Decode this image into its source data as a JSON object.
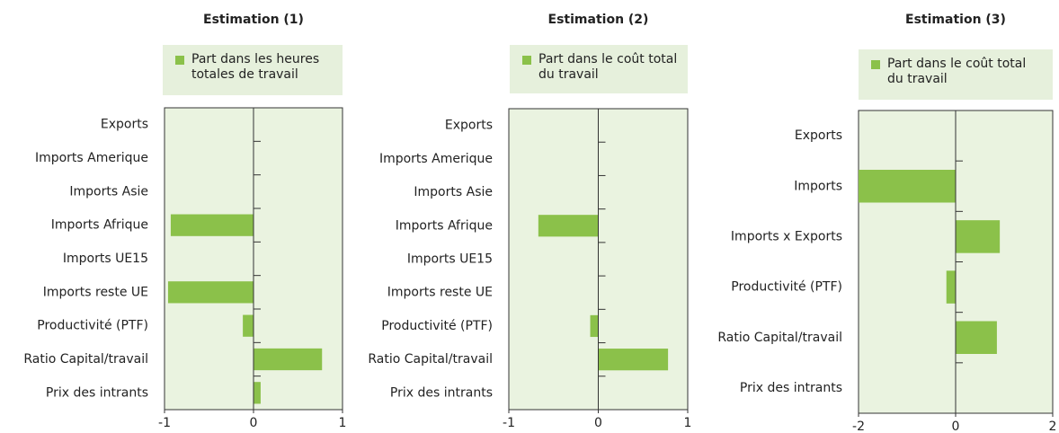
{
  "chart_data": [
    {
      "type": "bar",
      "title": "Estimation (1)",
      "categories": [
        "Exports",
        "Imports Amerique",
        "Imports Asie",
        "Imports Afrique",
        "Imports UE15",
        "Imports reste UE",
        "Productivité (PTF)",
        "Ratio Capital/travail",
        "Prix des intrants"
      ],
      "series": [
        {
          "name": "Part dans les heures totales de travail",
          "color": "#8bc14a",
          "values": [
            0,
            0,
            0,
            -0.93,
            0,
            -0.96,
            -0.12,
            0.77,
            0.08
          ]
        }
      ],
      "xlim": [
        -1,
        1
      ],
      "xticks": [
        -1,
        0,
        1
      ]
    },
    {
      "type": "bar",
      "title": "Estimation (2)",
      "categories": [
        "Exports",
        "Imports Amerique",
        "Imports Asie",
        "Imports Afrique",
        "Imports UE15",
        "Imports reste UE",
        "Productivité (PTF)",
        "Ratio Capital/travail",
        "Prix des intrants"
      ],
      "series": [
        {
          "name": "Part dans le coût total du travail",
          "color": "#8bc14a",
          "values": [
            0,
            0,
            0,
            -0.67,
            0,
            0,
            -0.09,
            0.78,
            0
          ]
        }
      ],
      "xlim": [
        -1,
        1
      ],
      "xticks": [
        -1,
        0,
        1
      ]
    },
    {
      "type": "bar",
      "title": "Estimation (3)",
      "categories": [
        "Exports",
        "Imports",
        "Imports x Exports",
        "Productivité (PTF)",
        "Ratio Capital/travail",
        "Prix des intrants"
      ],
      "series": [
        {
          "name": "Part dans le coût total du travail",
          "color": "#8bc14a",
          "values": [
            0,
            -2.0,
            0.91,
            -0.19,
            0.85,
            0
          ]
        }
      ],
      "xlim": [
        -2,
        2
      ],
      "xticks": [
        -2,
        0,
        2
      ]
    }
  ]
}
